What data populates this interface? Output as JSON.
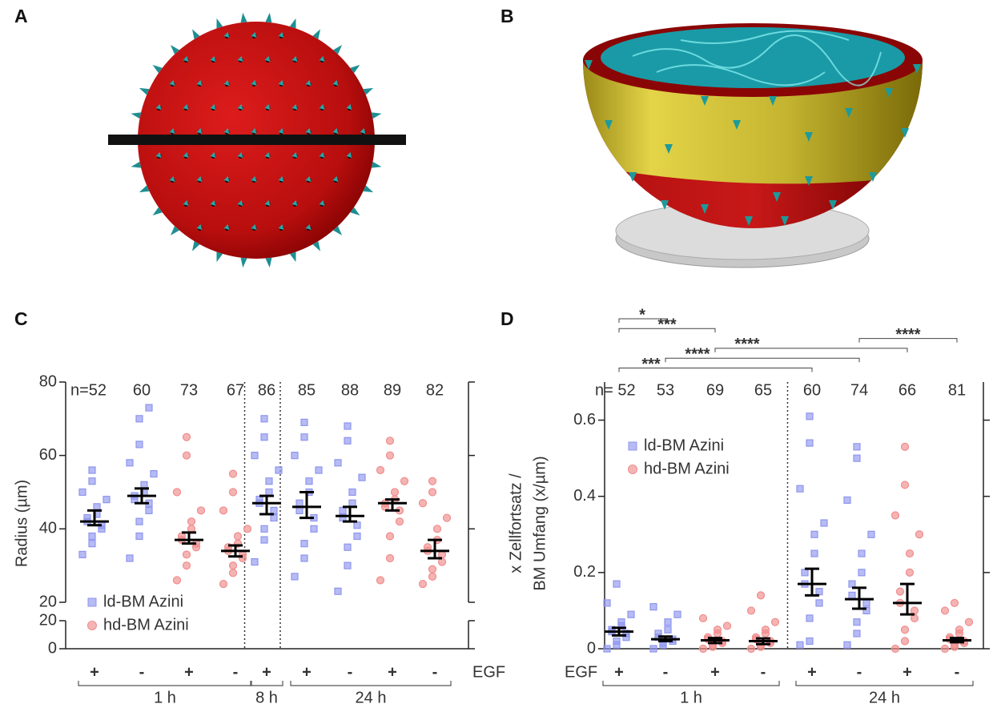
{
  "panels": [
    {
      "label": "A"
    },
    {
      "label": "B"
    }
  ],
  "chart_data": [
    {
      "type": "strip",
      "panel": "C",
      "y_label": "Radius (µm)",
      "x_label": "EGF",
      "categories": [
        "+",
        "-",
        "+",
        "-",
        "+",
        "+",
        "-",
        "+",
        "-"
      ],
      "groups": [
        {
          "label": "1 h",
          "from": 0,
          "to": 3
        },
        {
          "label": "8 h",
          "from": 4,
          "to": 4
        },
        {
          "label": "24 h",
          "from": 5,
          "to": 8
        }
      ],
      "n_labels": [
        "n=52",
        "60",
        "73",
        "67",
        "86",
        "85",
        "88",
        "89",
        "82"
      ],
      "series": [
        {
          "name": "ld-BM Azini",
          "color": "#8f96ee",
          "marker": "square"
        },
        {
          "name": "hd-BM Azini",
          "color": "#f08c8c",
          "marker": "circle"
        }
      ],
      "category_series": [
        0,
        0,
        1,
        1,
        0,
        0,
        0,
        1,
        1
      ],
      "points": [
        [
          33,
          36,
          38,
          40,
          41,
          42,
          43,
          44,
          46,
          48,
          50,
          53,
          56
        ],
        [
          32,
          38,
          42,
          45,
          47,
          48,
          49,
          50,
          52,
          55,
          58,
          63,
          70,
          73
        ],
        [
          26,
          30,
          33,
          35,
          36,
          37,
          38,
          40,
          42,
          45,
          50,
          60,
          65
        ],
        [
          25,
          28,
          30,
          32,
          33,
          34,
          35,
          36,
          38,
          40,
          45,
          50,
          55
        ],
        [
          31,
          37,
          40,
          43,
          45,
          47,
          48,
          50,
          53,
          56,
          60,
          65,
          70
        ],
        [
          27,
          32,
          36,
          40,
          43,
          45,
          47,
          50,
          53,
          56,
          60,
          65,
          69
        ],
        [
          23,
          30,
          35,
          38,
          41,
          43,
          45,
          47,
          50,
          54,
          58,
          64,
          68
        ],
        [
          26,
          32,
          38,
          42,
          45,
          46,
          47,
          48,
          50,
          53,
          56,
          60,
          64
        ],
        [
          25,
          27,
          29,
          31,
          33,
          34,
          35,
          37,
          40,
          43,
          47,
          50,
          53
        ]
      ],
      "median": [
        42,
        49,
        37,
        34,
        47,
        46,
        43.5,
        47,
        34
      ],
      "ci_low": [
        41,
        47,
        36,
        32.5,
        44,
        43,
        42,
        45,
        32
      ],
      "ci_high": [
        45,
        51,
        39,
        35.5,
        49,
        50,
        46,
        48,
        37
      ],
      "ylim": [
        20,
        80
      ],
      "yticks": [
        20,
        40,
        60,
        80
      ],
      "ylim_lower": [
        0,
        20
      ],
      "yticks_lower": [
        0,
        20
      ],
      "separators_after": [
        3,
        4
      ]
    },
    {
      "type": "strip",
      "panel": "D",
      "y_label": [
        "x Zellfortsatz /",
        "BM Umfang (x/µm)"
      ],
      "x_label": "EGF",
      "categories": [
        "+",
        "-",
        "+",
        "-",
        "+",
        "-",
        "+",
        "-"
      ],
      "groups": [
        {
          "label": "1 h",
          "from": 0,
          "to": 3
        },
        {
          "label": "24 h",
          "from": 4,
          "to": 7
        }
      ],
      "n_labels": [
        "n= 52",
        "53",
        "69",
        "65",
        "60",
        "74",
        "66",
        "81"
      ],
      "series": [
        {
          "name": "ld-BM Azini",
          "color": "#8f96ee",
          "marker": "square"
        },
        {
          "name": "hd-BM Azini",
          "color": "#f08c8c",
          "marker": "circle"
        }
      ],
      "category_series": [
        0,
        0,
        1,
        1,
        0,
        0,
        1,
        1
      ],
      "points": [
        [
          0,
          0.01,
          0.02,
          0.03,
          0.04,
          0.045,
          0.05,
          0.06,
          0.07,
          0.09,
          0.12,
          0.17
        ],
        [
          0,
          0.01,
          0.015,
          0.02,
          0.025,
          0.03,
          0.04,
          0.05,
          0.07,
          0.09,
          0.11
        ],
        [
          0,
          0.005,
          0.01,
          0.015,
          0.02,
          0.025,
          0.03,
          0.04,
          0.05,
          0.06,
          0.08
        ],
        [
          0,
          0.005,
          0.01,
          0.015,
          0.02,
          0.025,
          0.03,
          0.04,
          0.05,
          0.07,
          0.1,
          0.14
        ],
        [
          0.01,
          0.02,
          0.08,
          0.12,
          0.15,
          0.17,
          0.2,
          0.25,
          0.3,
          0.33,
          0.42,
          0.54,
          0.61
        ],
        [
          0.01,
          0.04,
          0.07,
          0.1,
          0.12,
          0.14,
          0.17,
          0.2,
          0.25,
          0.3,
          0.39,
          0.5,
          0.53
        ],
        [
          0,
          0.02,
          0.05,
          0.08,
          0.1,
          0.12,
          0.15,
          0.2,
          0.25,
          0.3,
          0.35,
          0.43,
          0.53
        ],
        [
          0,
          0.005,
          0.01,
          0.015,
          0.02,
          0.025,
          0.03,
          0.04,
          0.05,
          0.07,
          0.1,
          0.12
        ]
      ],
      "median": [
        0.045,
        0.025,
        0.022,
        0.02,
        0.17,
        0.13,
        0.12,
        0.022
      ],
      "ci_low": [
        0.035,
        0.02,
        0.015,
        0.012,
        0.14,
        0.105,
        0.09,
        0.017
      ],
      "ci_high": [
        0.055,
        0.032,
        0.028,
        0.027,
        0.21,
        0.16,
        0.17,
        0.028
      ],
      "ylim": [
        0,
        0.7
      ],
      "yticks": [
        0,
        0.2,
        0.4,
        0.6
      ],
      "separators_after": [
        3
      ],
      "brackets": [
        {
          "from": 0,
          "to": 1,
          "label": "*"
        },
        {
          "from": 0,
          "to": 2,
          "label": "***"
        },
        {
          "from": 5,
          "to": 7,
          "label": "****"
        },
        {
          "from": 2,
          "to": 6,
          "label": "****"
        },
        {
          "from": 1,
          "to": 5,
          "label": "****"
        },
        {
          "from": 0,
          "to": 4,
          "label": "***"
        }
      ]
    }
  ]
}
